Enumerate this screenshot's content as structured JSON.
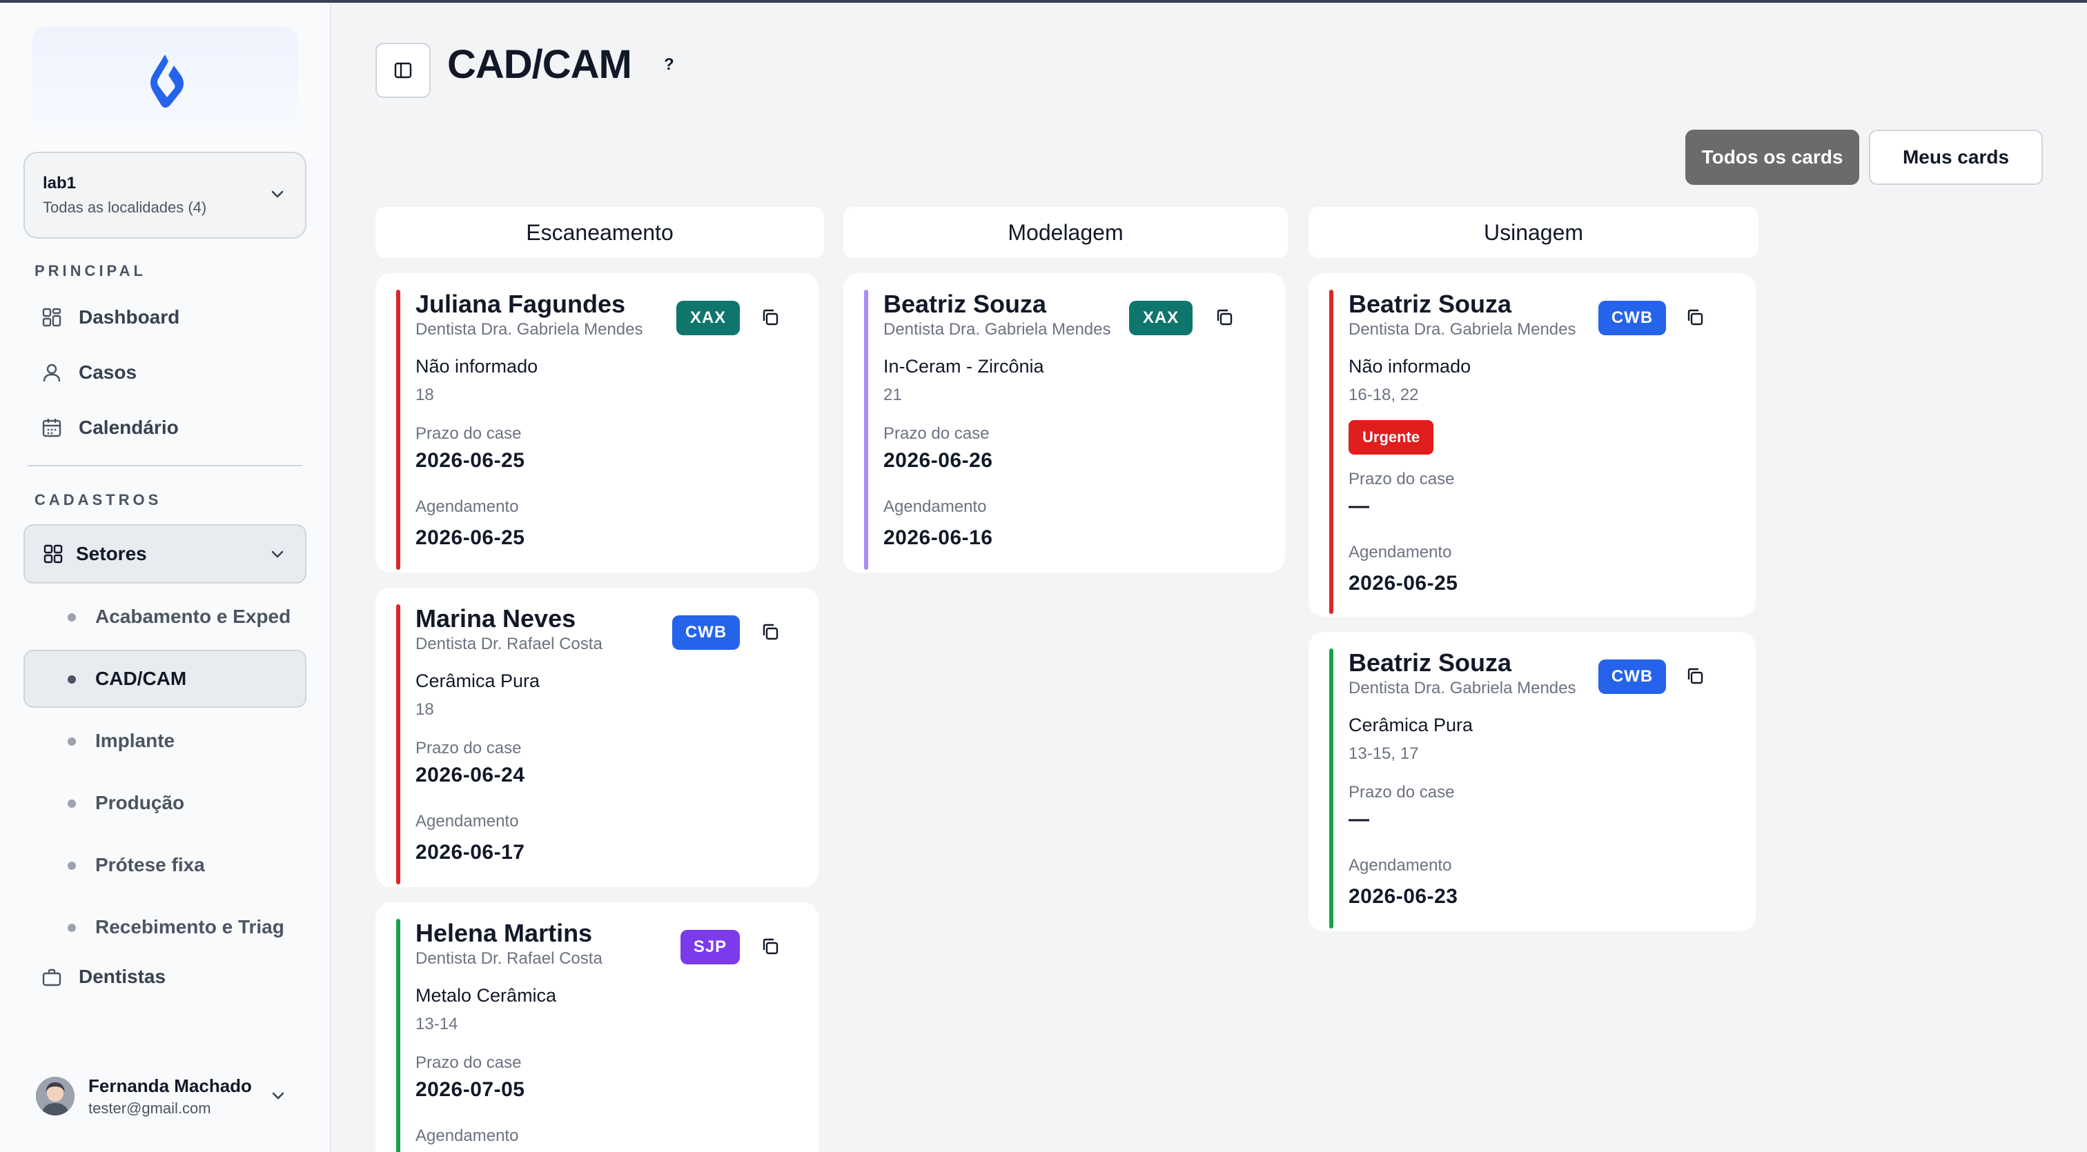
{
  "sidebar": {
    "lab": {
      "name": "lab1",
      "subtitle": "Todas as localidades (4)"
    },
    "section_principal": "PRINCIPAL",
    "section_cadastros": "CADASTROS",
    "nav": [
      {
        "label": "Dashboard",
        "icon": "dashboard-icon"
      },
      {
        "label": "Casos",
        "icon": "user-icon"
      },
      {
        "label": "Calendário",
        "icon": "calendar-icon"
      }
    ],
    "setores_label": "Setores",
    "setores_items": [
      {
        "label": "Acabamento e Exped"
      },
      {
        "label": "CAD/CAM"
      },
      {
        "label": "Implante"
      },
      {
        "label": "Produção"
      },
      {
        "label": "Prótese fixa"
      },
      {
        "label": "Recebimento e Triag"
      }
    ],
    "dentistas_label": "Dentistas",
    "user": {
      "name": "Fernanda Machado",
      "email": "tester@gmail.com"
    }
  },
  "header": {
    "title": "CAD/CAM",
    "help": "?"
  },
  "filters": {
    "all": "Todos os cards",
    "mine": "Meus cards"
  },
  "columns": [
    {
      "title": "Escaneamento"
    },
    {
      "title": "Modelagem"
    },
    {
      "title": "Usinagem"
    }
  ],
  "labels": {
    "deadline": "Prazo do case",
    "schedule": "Agendamento",
    "dash": "—"
  },
  "cards": [
    {
      "name": "Juliana Fagundes",
      "dentist": "Dentista Dra. Gabriela Mendes",
      "badge": "XAX",
      "material": "Não informado",
      "teeth": "18",
      "deadline": "2026-06-25",
      "schedule": "2026-06-25"
    },
    {
      "name": "Marina Neves",
      "dentist": "Dentista Dr. Rafael Costa",
      "badge": "CWB",
      "material": "Cerâmica Pura",
      "teeth": "18",
      "deadline": "2026-06-24",
      "schedule": "2026-06-17"
    },
    {
      "name": "Helena Martins",
      "dentist": "Dentista Dr. Rafael Costa",
      "badge": "SJP",
      "material": "Metalo Cerâmica",
      "teeth": "13-14",
      "deadline": "2026-07-05",
      "schedule": ""
    },
    {
      "name": "Beatriz Souza",
      "dentist": "Dentista Dra. Gabriela Mendes",
      "badge": "XAX",
      "material": "In-Ceram - Zircônia",
      "teeth": "21",
      "deadline": "2026-06-26",
      "schedule": "2026-06-16"
    },
    {
      "name": "Beatriz Souza",
      "dentist": "Dentista Dra. Gabriela Mendes",
      "badge": "CWB",
      "material": "Não informado",
      "teeth": "16-18, 22",
      "urgent": "Urgente",
      "deadline": "—",
      "schedule": "2026-06-25"
    },
    {
      "name": "Beatriz Souza",
      "dentist": "Dentista Dra. Gabriela Mendes",
      "badge": "CWB",
      "material": "Cerâmica Pura",
      "teeth": "13-15, 17",
      "deadline": "—",
      "schedule": "2026-06-23"
    }
  ],
  "colors": {
    "xax": "#0f766e",
    "cwb": "#2563eb",
    "sjp": "#7c3aed",
    "bar_red": "#dc2626",
    "bar_purple": "#a78bfa",
    "bar_green": "#16a34a",
    "active_filter": "#6b6b6b",
    "urgent": "#e11d1d"
  }
}
